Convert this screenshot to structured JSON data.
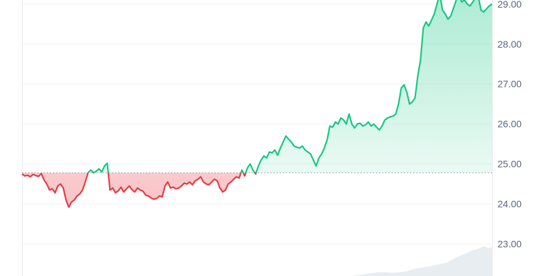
{
  "chart_data": {
    "type": "area",
    "title": "",
    "xlabel": "",
    "ylabel": "",
    "y_axis_position": "right",
    "grid": "horizontal",
    "ylim": [
      22.2,
      29.1
    ],
    "yticks": [
      "23.00",
      "24.00",
      "25.00",
      "26.00",
      "27.00",
      "28.00",
      "29.00"
    ],
    "baseline": 24.78,
    "colors": {
      "up_line": "#16c784",
      "down_line": "#ea3943",
      "up_fill": "#16c784",
      "down_fill": "#ea3943",
      "grid": "#eff2f5",
      "axis": "#e6e9ee",
      "baseline": "#8a919e",
      "volume": "#e8edf2",
      "tick_text": "#58667e"
    },
    "series": [
      {
        "x": [
          0,
          1,
          2,
          3,
          4,
          5,
          6,
          7,
          8,
          9,
          10,
          11,
          12,
          13,
          14,
          15,
          16,
          17,
          18,
          19,
          20,
          21,
          22,
          23,
          24,
          25,
          26,
          27,
          28,
          29,
          30,
          31,
          32,
          33,
          34,
          35,
          36,
          37,
          38,
          39,
          40,
          41,
          42,
          43,
          44,
          45,
          46,
          47,
          48,
          49,
          50,
          51,
          52,
          53,
          54,
          55,
          56,
          57,
          58,
          59,
          60,
          61,
          62,
          63,
          64,
          65,
          66,
          67,
          68,
          69,
          70,
          71,
          72,
          73,
          74,
          75,
          76,
          77,
          78,
          79,
          80,
          81,
          82,
          83,
          84,
          85,
          86,
          87,
          88,
          89,
          90,
          91,
          92,
          93,
          94,
          95,
          96,
          97,
          98,
          99,
          100,
          101,
          102,
          103,
          104,
          105,
          106,
          107,
          108,
          109,
          110,
          111,
          112,
          113,
          114,
          115,
          116,
          117,
          118,
          119,
          120,
          121,
          122,
          123,
          124,
          125,
          126,
          127,
          128,
          129,
          130,
          131,
          132,
          133,
          134,
          135,
          136,
          137,
          138,
          139,
          140,
          141,
          142,
          143,
          144,
          145,
          146,
          147,
          148,
          149,
          150,
          151,
          152,
          153,
          154,
          155,
          156,
          157,
          158,
          159,
          160,
          161,
          162,
          163,
          164,
          165,
          166,
          167,
          168,
          169,
          170,
          171
        ],
        "values": [
          24.75,
          24.7,
          24.72,
          24.68,
          24.74,
          24.71,
          24.69,
          24.76,
          24.6,
          24.5,
          24.35,
          24.38,
          24.28,
          24.45,
          24.5,
          24.4,
          24.1,
          23.92,
          24.05,
          24.1,
          24.2,
          24.25,
          24.35,
          24.55,
          24.78,
          24.85,
          24.78,
          24.82,
          24.88,
          24.8,
          24.95,
          25.02,
          24.35,
          24.4,
          24.28,
          24.33,
          24.42,
          24.3,
          24.38,
          24.45,
          24.36,
          24.3,
          24.4,
          24.35,
          24.32,
          24.22,
          24.2,
          24.15,
          24.12,
          24.14,
          24.2,
          24.18,
          24.45,
          24.55,
          24.4,
          24.42,
          24.38,
          24.4,
          24.45,
          24.52,
          24.5,
          24.55,
          24.48,
          24.58,
          24.62,
          24.68,
          24.55,
          24.5,
          24.48,
          24.55,
          24.62,
          24.58,
          24.4,
          24.3,
          24.35,
          24.5,
          24.55,
          24.62,
          24.68,
          24.65,
          24.85,
          24.7,
          24.9,
          25.0,
          24.85,
          24.75,
          24.95,
          25.1,
          25.2,
          25.15,
          25.3,
          25.28,
          25.35,
          25.22,
          25.4,
          25.55,
          25.7,
          25.62,
          25.55,
          25.45,
          25.42,
          25.4,
          25.45,
          25.35,
          25.3,
          25.25,
          25.1,
          24.95,
          25.15,
          25.25,
          25.4,
          25.6,
          25.95,
          25.92,
          26.05,
          26.0,
          26.15,
          26.1,
          26.0,
          26.25,
          26.0,
          25.9,
          26.0,
          26.02,
          25.95,
          25.98,
          26.05,
          25.95,
          26.0,
          25.92,
          25.85,
          25.95,
          26.1,
          26.15,
          26.18,
          26.2,
          26.25,
          26.5,
          26.9,
          26.98,
          26.8,
          26.5,
          26.55,
          26.65,
          27.2,
          27.6,
          28.4,
          28.55,
          28.45,
          28.6,
          28.75,
          29.0,
          29.25,
          28.85,
          28.75,
          28.62,
          28.7,
          28.9,
          29.1,
          29.2,
          29.05,
          29.1,
          29.0,
          28.95,
          29.05,
          29.15,
          29.2,
          28.85,
          28.8,
          28.88,
          28.95,
          29.0
        ]
      }
    ],
    "volume": {
      "ylim": [
        0,
        1
      ],
      "x": [
        0,
        10,
        20,
        30,
        40,
        50,
        60,
        70,
        80,
        90,
        100,
        110,
        120,
        125,
        130,
        135,
        140,
        143,
        146,
        149,
        152,
        155,
        158,
        160,
        162,
        164,
        166,
        168,
        170,
        171
      ],
      "values": [
        0.0,
        0.0,
        0.0,
        0.0,
        0.0,
        0.0,
        0.0,
        0.0,
        0.0,
        0.0,
        0.0,
        0.0,
        0.0,
        0.06,
        0.12,
        0.1,
        0.14,
        0.22,
        0.26,
        0.3,
        0.36,
        0.42,
        0.56,
        0.64,
        0.7,
        0.78,
        0.82,
        0.9,
        0.84,
        0.88
      ]
    }
  }
}
